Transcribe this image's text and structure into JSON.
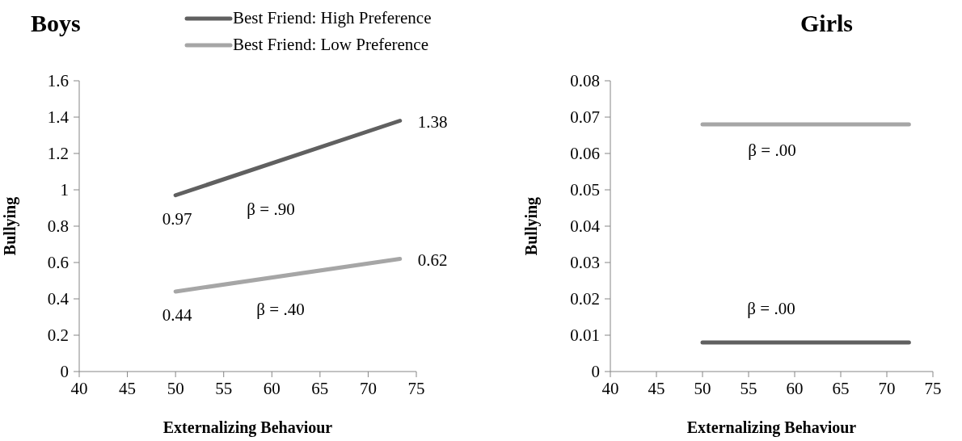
{
  "chart_data": [
    {
      "type": "line",
      "title": "Boys",
      "xlabel": "Externalizing Behaviour",
      "ylabel": "Bullying",
      "xlim": [
        40,
        75
      ],
      "xticks": [
        40,
        45,
        50,
        55,
        60,
        65,
        70,
        75
      ],
      "ylim": [
        0,
        1.6
      ],
      "yticks": [
        {
          "value": 0,
          "label": "0"
        },
        {
          "value": 0.2,
          "label": "0.2"
        },
        {
          "value": 0.4,
          "label": "0.4"
        },
        {
          "value": 0.6,
          "label": "0.6"
        },
        {
          "value": 0.8,
          "label": "0.8"
        },
        {
          "value": 1,
          "label": "1"
        },
        {
          "value": 1.2,
          "label": "1.2"
        },
        {
          "value": 1.4,
          "label": "1.4"
        },
        {
          "value": 1.6,
          "label": "1.6"
        }
      ],
      "grid": false,
      "legend": "top",
      "marker": "none",
      "line_style": "solid",
      "series": [
        {
          "name": "Best Friend: High Preference",
          "color": "#606060",
          "x": [
            50,
            73.3
          ],
          "values": [
            0.97,
            1.38
          ],
          "value_labels": [
            "0.97",
            "1.38"
          ]
        },
        {
          "name": "Best Friend: Low Preference",
          "color": "#a6a6a6",
          "x": [
            50,
            73.3
          ],
          "values": [
            0.44,
            0.62
          ],
          "value_labels": [
            "0.44",
            "0.62"
          ]
        }
      ],
      "annotations": [
        "β = .90",
        "β = .40"
      ]
    },
    {
      "type": "line",
      "title": "Girls",
      "xlabel": "Externalizing Behaviour",
      "ylabel": "Bullying",
      "xlim": [
        40,
        75
      ],
      "xticks": [
        40,
        45,
        50,
        55,
        60,
        65,
        70,
        75
      ],
      "ylim": [
        0,
        0.08
      ],
      "yticks": [
        {
          "value": 0,
          "label": "0"
        },
        {
          "value": 0.01,
          "label": "0.01"
        },
        {
          "value": 0.02,
          "label": "0.02"
        },
        {
          "value": 0.03,
          "label": "0.03"
        },
        {
          "value": 0.04,
          "label": "0.04"
        },
        {
          "value": 0.05,
          "label": "0.05"
        },
        {
          "value": 0.06,
          "label": "0.06"
        },
        {
          "value": 0.07,
          "label": "0.07"
        },
        {
          "value": 0.08,
          "label": "0.08"
        }
      ],
      "grid": false,
      "legend": false,
      "marker": "none",
      "line_style": "solid",
      "series": [
        {
          "color": "#606060",
          "x": [
            50,
            72.4
          ],
          "values": [
            0.008,
            0.008
          ]
        },
        {
          "color": "#a6a6a6",
          "x": [
            50,
            72.4
          ],
          "values": [
            0.068,
            0.068
          ]
        }
      ],
      "annotations": [
        "β = .00",
        "β = .00"
      ]
    }
  ]
}
